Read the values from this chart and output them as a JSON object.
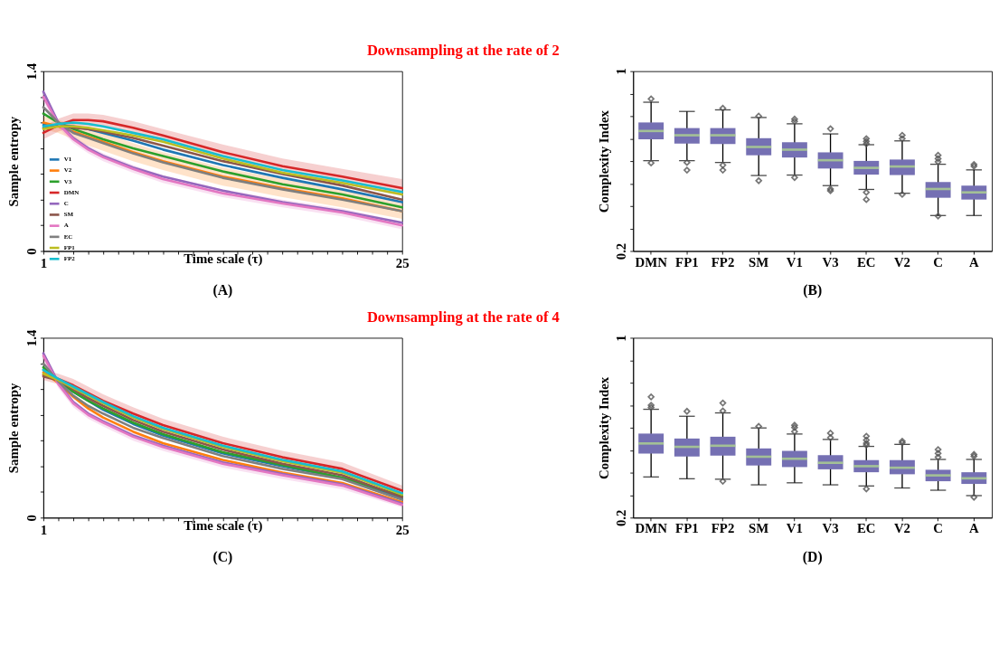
{
  "chart_data": [
    {
      "type": "line",
      "title": "Downsampling at the rate of 2",
      "xlabel": "Time scale (τ)",
      "ylabel": "Sample entropy",
      "annotations": [
        "(A)"
      ],
      "legend": "bottom left",
      "xlim": [
        1,
        25
      ],
      "ylim": [
        0,
        1.4
      ],
      "xticks": [
        1,
        {
          "value": 2,
          "label": null
        },
        {
          "value": 3,
          "label": null
        },
        {
          "value": 4,
          "label": null
        },
        {
          "value": 5,
          "label": null
        },
        {
          "value": 6,
          "label": null
        },
        {
          "value": 7,
          "label": null
        },
        {
          "value": 8,
          "label": null
        },
        {
          "value": 9,
          "label": null
        },
        {
          "value": 10,
          "label": null
        },
        {
          "value": 11,
          "label": null
        },
        {
          "value": 12,
          "label": null
        },
        {
          "value": 13,
          "label": null
        },
        {
          "value": 14,
          "label": null
        },
        {
          "value": 15,
          "label": null
        },
        {
          "value": 16,
          "label": null
        },
        {
          "value": 17,
          "label": null
        },
        {
          "value": 18,
          "label": null
        },
        {
          "value": 19,
          "label": null
        },
        {
          "value": 20,
          "label": null
        },
        {
          "value": 21,
          "label": null
        },
        {
          "value": 22,
          "label": null
        },
        {
          "value": 23,
          "label": null
        },
        {
          "value": 24,
          "label": null
        },
        25
      ],
      "yticks": [
        0,
        {
          "value": 0.2,
          "label": null
        },
        {
          "value": 0.4,
          "label": null
        },
        {
          "value": 0.6,
          "label": null
        },
        {
          "value": 0.8,
          "label": null
        },
        {
          "value": 1.0,
          "label": null
        },
        {
          "value": 1.2,
          "label": null
        },
        1.4
      ],
      "x": [
        1,
        2,
        3,
        4,
        5,
        7,
        9,
        13,
        17,
        21,
        25
      ],
      "series": [
        {
          "name": "V1",
          "color": "#1f77b4",
          "values": [
            0.98,
            0.98,
            0.97,
            0.95,
            0.92,
            0.86,
            0.79,
            0.67,
            0.57,
            0.48,
            0.38
          ]
        },
        {
          "name": "V2",
          "color": "#ff7f0e",
          "values": [
            1.0,
            0.97,
            0.93,
            0.89,
            0.85,
            0.77,
            0.7,
            0.58,
            0.49,
            0.41,
            0.31
          ],
          "lower": [
            0.95,
            0.92,
            0.87,
            0.82,
            0.78,
            0.7,
            0.63,
            0.51,
            0.42,
            0.34,
            0.25
          ],
          "upper": [
            1.05,
            1.02,
            0.99,
            0.96,
            0.92,
            0.84,
            0.77,
            0.65,
            0.56,
            0.48,
            0.37
          ]
        },
        {
          "name": "V3",
          "color": "#2ca02c",
          "values": [
            1.07,
            1.0,
            0.95,
            0.91,
            0.87,
            0.8,
            0.74,
            0.62,
            0.52,
            0.44,
            0.34
          ]
        },
        {
          "name": "DMN",
          "color": "#d62728",
          "values": [
            0.92,
            0.98,
            1.02,
            1.02,
            1.01,
            0.96,
            0.9,
            0.77,
            0.66,
            0.58,
            0.49
          ],
          "lower": [
            0.87,
            0.93,
            0.97,
            0.97,
            0.96,
            0.91,
            0.85,
            0.72,
            0.61,
            0.52,
            0.43
          ],
          "upper": [
            0.97,
            1.03,
            1.07,
            1.07,
            1.06,
            1.01,
            0.95,
            0.83,
            0.72,
            0.64,
            0.56
          ]
        },
        {
          "name": "C",
          "color": "#9467bd",
          "values": [
            1.24,
            1.0,
            0.88,
            0.8,
            0.74,
            0.65,
            0.58,
            0.47,
            0.38,
            0.31,
            0.22
          ]
        },
        {
          "name": "SM",
          "color": "#8c564b",
          "values": [
            0.96,
            0.98,
            0.96,
            0.95,
            0.93,
            0.88,
            0.82,
            0.7,
            0.6,
            0.51,
            0.4
          ]
        },
        {
          "name": "A",
          "color": "#e377c2",
          "values": [
            1.2,
            0.99,
            0.87,
            0.79,
            0.73,
            0.64,
            0.56,
            0.45,
            0.37,
            0.3,
            0.2
          ],
          "lower": [
            1.16,
            0.96,
            0.84,
            0.76,
            0.7,
            0.61,
            0.53,
            0.42,
            0.34,
            0.27,
            0.17
          ],
          "upper": [
            1.24,
            1.02,
            0.9,
            0.82,
            0.76,
            0.67,
            0.59,
            0.48,
            0.4,
            0.33,
            0.23
          ]
        },
        {
          "name": "EC",
          "color": "#7f7f7f",
          "values": [
            1.12,
            1.0,
            0.92,
            0.88,
            0.84,
            0.76,
            0.69,
            0.57,
            0.48,
            0.4,
            0.31
          ]
        },
        {
          "name": "FP1",
          "color": "#bcbd22",
          "values": [
            0.95,
            0.97,
            0.97,
            0.96,
            0.94,
            0.9,
            0.85,
            0.72,
            0.61,
            0.53,
            0.44
          ]
        },
        {
          "name": "FP2",
          "color": "#17becf",
          "values": [
            0.97,
            0.99,
            1.0,
            0.99,
            0.97,
            0.92,
            0.87,
            0.74,
            0.63,
            0.55,
            0.46
          ]
        }
      ]
    },
    {
      "type": "box",
      "ylabel": "Complexity Index",
      "annotations": [
        "(B)"
      ],
      "ylim": [
        0.2,
        1
      ],
      "yticks": [
        0.2,
        {
          "value": 0.3,
          "label": null
        },
        {
          "value": 0.4,
          "label": null
        },
        {
          "value": 0.5,
          "label": null
        },
        {
          "value": 0.6,
          "label": null
        },
        {
          "value": 0.7,
          "label": null
        },
        {
          "value": 0.8,
          "label": null
        },
        {
          "value": 0.9,
          "label": null
        },
        1
      ],
      "categories": [
        "DMN",
        "FP1",
        "FP2",
        "SM",
        "V1",
        "V3",
        "EC",
        "V2",
        "C",
        "A"
      ],
      "series": [
        {
          "color": "#7570b3",
          "boxes": [
            {
              "low": 0.602,
              "q1": 0.697,
              "median": 0.734,
              "q3": 0.772,
              "high": 0.862,
              "outliers": [
                0.877,
                0.592
              ]
            },
            {
              "low": 0.602,
              "q1": 0.678,
              "median": 0.715,
              "q3": 0.747,
              "high": 0.821,
              "outliers": [
                0.594,
                0.56
              ]
            },
            {
              "low": 0.594,
              "q1": 0.676,
              "median": 0.715,
              "q3": 0.747,
              "high": 0.828,
              "outliers": [
                0.835,
                0.582,
                0.56
              ]
            },
            {
              "low": 0.536,
              "q1": 0.626,
              "median": 0.663,
              "q3": 0.702,
              "high": 0.794,
              "outliers": [
                0.8,
                0.513
              ]
            },
            {
              "low": 0.538,
              "q1": 0.616,
              "median": 0.651,
              "q3": 0.684,
              "high": 0.766,
              "outliers": [
                0.787,
                0.777,
                0.527
              ]
            },
            {
              "low": 0.491,
              "q1": 0.567,
              "median": 0.604,
              "q3": 0.639,
              "high": 0.721,
              "outliers": [
                0.744,
                0.476,
                0.468
              ]
            },
            {
              "low": 0.474,
              "q1": 0.54,
              "median": 0.57,
              "q3": 0.601,
              "high": 0.673,
              "outliers": [
                0.7,
                0.688,
                0.677,
                0.461,
                0.429
              ]
            },
            {
              "low": 0.457,
              "q1": 0.538,
              "median": 0.576,
              "q3": 0.607,
              "high": 0.69,
              "outliers": [
                0.715,
                0.7,
                0.452
              ]
            },
            {
              "low": 0.358,
              "q1": 0.437,
              "median": 0.476,
              "q3": 0.507,
              "high": 0.586,
              "outliers": [
                0.626,
                0.611,
                0.597,
                0.356
              ]
            },
            {
              "low": 0.358,
              "q1": 0.429,
              "median": 0.461,
              "q3": 0.491,
              "high": 0.561,
              "outliers": [
                0.585,
                0.577
              ]
            }
          ]
        }
      ]
    },
    {
      "type": "line",
      "title": "Downsampling at the rate of 4",
      "xlabel": "Time scale (τ)",
      "ylabel": "Sample entropy",
      "annotations": [
        "(C)"
      ],
      "legend": "bottom left",
      "xlim": [
        1,
        25
      ],
      "ylim": [
        0,
        1.4
      ],
      "xticks": [
        1,
        {
          "value": 2,
          "label": null
        },
        {
          "value": 3,
          "label": null
        },
        {
          "value": 4,
          "label": null
        },
        {
          "value": 5,
          "label": null
        },
        {
          "value": 6,
          "label": null
        },
        {
          "value": 7,
          "label": null
        },
        {
          "value": 8,
          "label": null
        },
        {
          "value": 9,
          "label": null
        },
        {
          "value": 10,
          "label": null
        },
        {
          "value": 11,
          "label": null
        },
        {
          "value": 12,
          "label": null
        },
        {
          "value": 13,
          "label": null
        },
        {
          "value": 14,
          "label": null
        },
        {
          "value": 15,
          "label": null
        },
        {
          "value": 16,
          "label": null
        },
        {
          "value": 17,
          "label": null
        },
        {
          "value": 18,
          "label": null
        },
        {
          "value": 19,
          "label": null
        },
        {
          "value": 20,
          "label": null
        },
        {
          "value": 21,
          "label": null
        },
        {
          "value": 22,
          "label": null
        },
        {
          "value": 23,
          "label": null
        },
        {
          "value": 24,
          "label": null
        },
        25
      ],
      "yticks": [
        0,
        {
          "value": 0.2,
          "label": null
        },
        {
          "value": 0.4,
          "label": null
        },
        {
          "value": 0.6,
          "label": null
        },
        {
          "value": 0.8,
          "label": null
        },
        {
          "value": 1.0,
          "label": null
        },
        {
          "value": 1.2,
          "label": null
        },
        1.4
      ],
      "x": [
        1,
        2,
        3,
        4,
        5,
        7,
        9,
        13,
        17,
        21,
        25
      ],
      "series": [
        {
          "name": "V1",
          "color": "#1f77b4",
          "values": [
            1.15,
            1.07,
            0.98,
            0.91,
            0.84,
            0.73,
            0.64,
            0.5,
            0.4,
            0.31,
            0.15
          ]
        },
        {
          "name": "V2",
          "color": "#ff7f0e",
          "values": [
            1.13,
            1.05,
            0.94,
            0.85,
            0.78,
            0.67,
            0.58,
            0.45,
            0.35,
            0.27,
            0.12
          ]
        },
        {
          "name": "V3",
          "color": "#2ca02c",
          "values": [
            1.17,
            1.07,
            0.98,
            0.91,
            0.85,
            0.74,
            0.65,
            0.51,
            0.41,
            0.31,
            0.17
          ]
        },
        {
          "name": "DMN",
          "color": "#d62728",
          "values": [
            1.11,
            1.08,
            1.03,
            0.97,
            0.91,
            0.81,
            0.72,
            0.58,
            0.47,
            0.38,
            0.21
          ],
          "lower": [
            1.07,
            1.04,
            0.99,
            0.93,
            0.87,
            0.77,
            0.68,
            0.54,
            0.43,
            0.34,
            0.17
          ],
          "upper": [
            1.15,
            1.12,
            1.08,
            1.02,
            0.96,
            0.86,
            0.77,
            0.63,
            0.52,
            0.43,
            0.25
          ]
        },
        {
          "name": "C",
          "color": "#9467bd",
          "values": [
            1.28,
            1.05,
            0.9,
            0.81,
            0.75,
            0.64,
            0.56,
            0.43,
            0.34,
            0.26,
            0.11
          ]
        },
        {
          "name": "SM",
          "color": "#8c564b",
          "values": [
            1.1,
            1.07,
            1.0,
            0.93,
            0.87,
            0.76,
            0.67,
            0.53,
            0.42,
            0.33,
            0.16
          ]
        },
        {
          "name": "A",
          "color": "#e377c2",
          "values": [
            1.26,
            1.04,
            0.89,
            0.8,
            0.74,
            0.63,
            0.55,
            0.42,
            0.33,
            0.25,
            0.1
          ],
          "lower": [
            1.22,
            1.01,
            0.86,
            0.77,
            0.71,
            0.6,
            0.52,
            0.39,
            0.3,
            0.22,
            0.08
          ],
          "upper": [
            1.3,
            1.07,
            0.92,
            0.83,
            0.77,
            0.66,
            0.58,
            0.45,
            0.36,
            0.28,
            0.12
          ]
        },
        {
          "name": "EC",
          "color": "#7f7f7f",
          "values": [
            1.2,
            1.06,
            0.95,
            0.87,
            0.81,
            0.7,
            0.62,
            0.48,
            0.38,
            0.3,
            0.14
          ]
        },
        {
          "name": "FP1",
          "color": "#bcbd22",
          "values": [
            1.12,
            1.07,
            1.01,
            0.95,
            0.89,
            0.78,
            0.69,
            0.55,
            0.44,
            0.35,
            0.18
          ]
        },
        {
          "name": "FP2",
          "color": "#17becf",
          "values": [
            1.15,
            1.08,
            1.02,
            0.96,
            0.9,
            0.79,
            0.7,
            0.56,
            0.45,
            0.36,
            0.19
          ]
        }
      ]
    },
    {
      "type": "box",
      "ylabel": "Complexity Index",
      "annotations": [
        "(D)"
      ],
      "ylim": [
        0.2,
        1
      ],
      "yticks": [
        0.2,
        {
          "value": 0.3,
          "label": null
        },
        {
          "value": 0.4,
          "label": null
        },
        {
          "value": 0.5,
          "label": null
        },
        {
          "value": 0.6,
          "label": null
        },
        {
          "value": 0.7,
          "label": null
        },
        {
          "value": 0.8,
          "label": null
        },
        {
          "value": 0.9,
          "label": null
        },
        1
      ],
      "categories": [
        "DMN",
        "FP1",
        "FP2",
        "SM",
        "V1",
        "V3",
        "EC",
        "V2",
        "C",
        "A"
      ],
      "series": [
        {
          "color": "#7570b3",
          "boxes": [
            {
              "low": 0.381,
              "q1": 0.485,
              "median": 0.53,
              "q3": 0.574,
              "high": 0.682,
              "outliers": [
                0.737,
                0.7,
                0.69
              ]
            },
            {
              "low": 0.373,
              "q1": 0.472,
              "median": 0.515,
              "q3": 0.552,
              "high": 0.651,
              "outliers": [
                0.673
              ]
            },
            {
              "low": 0.371,
              "q1": 0.476,
              "median": 0.52,
              "q3": 0.56,
              "high": 0.666,
              "outliers": [
                0.71,
                0.675,
                0.362
              ]
            },
            {
              "low": 0.346,
              "q1": 0.432,
              "median": 0.471,
              "q3": 0.508,
              "high": 0.599,
              "outliers": [
                0.606
              ]
            },
            {
              "low": 0.355,
              "q1": 0.425,
              "median": 0.462,
              "q3": 0.497,
              "high": 0.572,
              "outliers": [
                0.611,
                0.601,
                0.583
              ]
            },
            {
              "low": 0.346,
              "q1": 0.415,
              "median": 0.444,
              "q3": 0.478,
              "high": 0.548,
              "outliers": [
                0.576,
                0.556
              ]
            },
            {
              "low": 0.341,
              "q1": 0.402,
              "median": 0.429,
              "q3": 0.456,
              "high": 0.517,
              "outliers": [
                0.562,
                0.545,
                0.531,
                0.523,
                0.328
              ]
            },
            {
              "low": 0.332,
              "q1": 0.393,
              "median": 0.422,
              "q3": 0.456,
              "high": 0.526,
              "outliers": [
                0.54,
                0.533
              ]
            },
            {
              "low": 0.322,
              "q1": 0.362,
              "median": 0.388,
              "q3": 0.413,
              "high": 0.459,
              "outliers": [
                0.503,
                0.486,
                0.469
              ]
            },
            {
              "low": 0.298,
              "q1": 0.35,
              "median": 0.375,
              "q3": 0.402,
              "high": 0.459,
              "outliers": [
                0.481,
                0.473,
                0.291
              ]
            }
          ]
        }
      ]
    }
  ]
}
